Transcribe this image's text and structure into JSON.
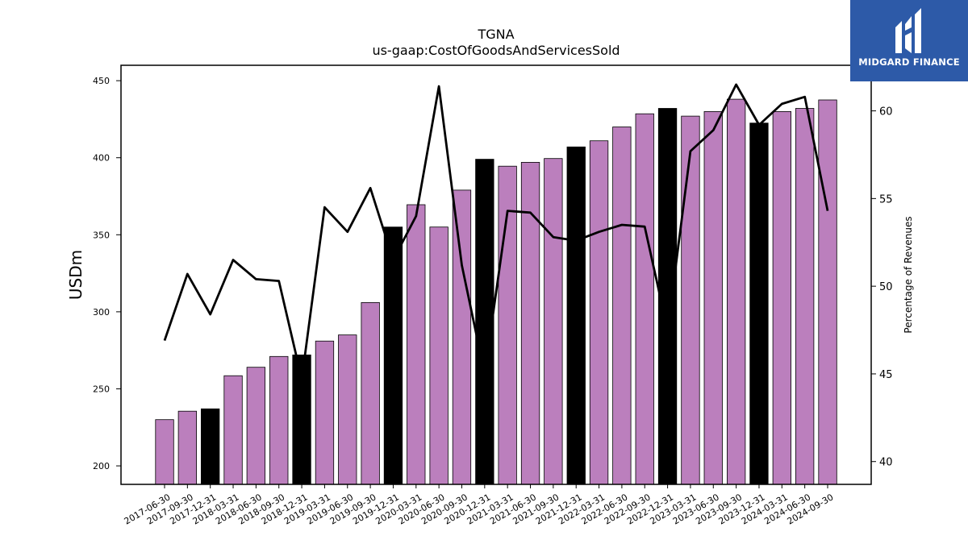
{
  "chart_data": {
    "type": "bar",
    "title": "TGNA",
    "subtitle": "us-gaap:CostOfGoodsAndServicesSold",
    "ylabel": "USDm",
    "y2label": "Percentage of Revenues",
    "ylim": [
      188,
      460
    ],
    "y2lim": [
      38.7,
      62.6
    ],
    "yticks": [
      200,
      250,
      300,
      350,
      400,
      450
    ],
    "y2ticks": [
      40,
      45,
      50,
      55,
      60
    ],
    "grid": false,
    "categories": [
      "2017-06-30",
      "2017-09-30",
      "2017-12-31",
      "2018-03-31",
      "2018-06-30",
      "2018-09-30",
      "2018-12-31",
      "2019-03-31",
      "2019-06-30",
      "2019-09-30",
      "2019-12-31",
      "2020-03-31",
      "2020-06-30",
      "2020-09-30",
      "2020-12-31",
      "2021-03-31",
      "2021-06-30",
      "2021-09-30",
      "2021-12-31",
      "2022-03-31",
      "2022-06-30",
      "2022-09-30",
      "2022-12-31",
      "2023-03-31",
      "2023-06-30",
      "2023-09-30",
      "2023-12-31",
      "2024-03-31",
      "2024-06-30",
      "2024-09-30"
    ],
    "series": [
      {
        "type": "bar",
        "values": [
          230,
          235.5,
          237,
          258.5,
          264,
          271,
          272,
          281,
          285,
          306,
          355,
          369.5,
          355,
          379,
          399,
          394.5,
          397,
          399.5,
          407,
          411,
          420,
          428.5,
          432,
          427,
          430,
          438,
          422.5,
          430,
          432,
          437.5
        ],
        "colors": [
          "#bb7fbd",
          "#bb7fbd",
          "#000000",
          "#bb7fbd",
          "#bb7fbd",
          "#bb7fbd",
          "#000000",
          "#bb7fbd",
          "#bb7fbd",
          "#bb7fbd",
          "#000000",
          "#bb7fbd",
          "#bb7fbd",
          "#bb7fbd",
          "#000000",
          "#bb7fbd",
          "#bb7fbd",
          "#bb7fbd",
          "#000000",
          "#bb7fbd",
          "#bb7fbd",
          "#bb7fbd",
          "#000000",
          "#bb7fbd",
          "#bb7fbd",
          "#bb7fbd",
          "#000000",
          "#bb7fbd",
          "#bb7fbd",
          "#bb7fbd"
        ]
      },
      {
        "type": "line",
        "axis": "right",
        "color": "#000000",
        "values": [
          46.9,
          50.7,
          48.4,
          51.5,
          50.4,
          50.3,
          44.7,
          54.5,
          53.1,
          55.6,
          51.5,
          54.0,
          61.4,
          51.2,
          45.0,
          54.3,
          54.2,
          52.8,
          52.6,
          53.1,
          53.5,
          53.4,
          47.5,
          57.7,
          58.9,
          61.5,
          59.2,
          60.4,
          60.8,
          54.3
        ]
      }
    ]
  },
  "logo": {
    "text": "MIDGARD FINANCE",
    "background": "#2d5aa8"
  }
}
